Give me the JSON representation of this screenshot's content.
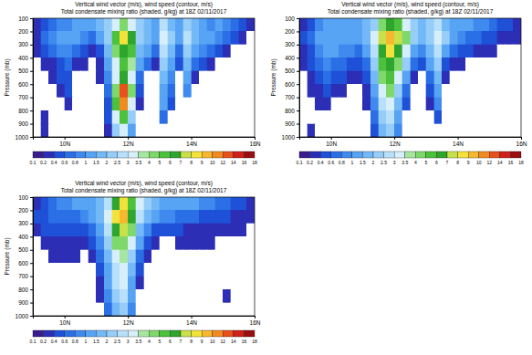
{
  "chart_data": [
    {
      "type": "heatmap",
      "title": "Vertical wind vector (m/s), wind speed (contour, m/s)",
      "subtitle": "Total condensate mixing ratio (shaded, g/kg) at 18Z 02/11/2017",
      "y_label": "Pressure (mb)",
      "xlim": [
        9,
        16
      ],
      "xticks": [
        {
          "value": 10,
          "label": "10N"
        },
        {
          "value": 12,
          "label": "12N"
        },
        {
          "value": 14,
          "label": "14N"
        },
        {
          "value": 16,
          "label": "16N"
        }
      ],
      "ylim": [
        1000,
        100
      ],
      "yticks": [
        100,
        200,
        300,
        400,
        500,
        600,
        700,
        800,
        900,
        1000
      ],
      "x_bins": [
        9,
        9.25,
        9.5,
        9.75,
        10,
        10.25,
        10.5,
        10.75,
        11,
        11.25,
        11.5,
        11.75,
        12,
        12.25,
        12.5,
        12.75,
        13,
        13.25,
        13.5,
        13.75,
        14,
        14.25,
        14.5,
        14.75,
        15,
        15.25,
        15.5,
        15.75,
        16
      ],
      "y_bins": [
        100,
        200,
        300,
        400,
        500,
        600,
        700,
        800,
        900,
        1000
      ],
      "cells": [
        [
          0.3,
          0.5,
          0.6,
          0.8,
          0.8,
          1,
          1.2,
          1,
          1.5,
          2,
          3,
          4,
          3,
          2,
          1.5,
          1.2,
          2.5,
          1.5,
          1.2,
          2,
          1.5,
          1,
          0.8,
          1,
          0.8,
          0.6,
          0.5,
          0.3
        ],
        [
          0.3,
          0.6,
          0.8,
          1,
          1.2,
          1,
          0.8,
          0.6,
          1,
          2,
          5,
          8,
          6,
          2,
          1.5,
          1,
          3,
          2,
          1,
          2.5,
          1.5,
          1,
          1.2,
          0.8,
          0.6,
          0.5,
          0.3,
          0
        ],
        [
          0.2,
          0.4,
          0.6,
          0.8,
          0.8,
          0.6,
          0.5,
          0.3,
          0.5,
          1.5,
          4,
          6,
          5,
          1.5,
          1,
          0.6,
          2.5,
          1.5,
          0.6,
          2,
          1,
          0.8,
          0.6,
          0.4,
          0.3,
          0,
          0,
          0
        ],
        [
          0,
          0.2,
          0.3,
          0.5,
          0.6,
          0.3,
          0.2,
          0,
          0.3,
          1,
          3,
          5,
          3.5,
          1,
          0.6,
          0.3,
          2,
          1,
          0.4,
          1.5,
          0.6,
          0.5,
          0.3,
          0,
          0,
          0,
          0,
          0
        ],
        [
          0,
          0,
          0.2,
          0.4,
          0.5,
          0,
          0,
          0,
          0.2,
          0.8,
          3,
          6,
          3,
          0.6,
          0,
          0,
          1.5,
          0.8,
          0,
          1.2,
          0.3,
          0,
          0,
          0,
          0,
          0,
          0,
          0
        ],
        [
          0,
          0,
          0,
          0.3,
          0.4,
          0,
          0,
          0,
          0,
          0.6,
          4,
          12,
          4,
          0.4,
          0,
          0,
          1.2,
          0.6,
          0,
          0.8,
          0,
          0,
          0,
          0,
          0,
          0,
          0,
          0
        ],
        [
          0,
          0,
          0,
          0,
          0.2,
          0,
          0,
          0,
          0,
          0.5,
          5,
          10,
          3,
          0.3,
          0,
          0,
          1,
          0.4,
          0,
          0,
          0,
          0,
          0,
          0,
          0,
          0,
          0,
          0
        ],
        [
          0,
          0.3,
          0,
          0,
          0,
          0,
          0,
          0,
          0,
          0.4,
          3,
          5,
          2,
          0,
          0,
          0,
          0.6,
          0,
          0,
          0,
          0,
          0,
          0,
          0,
          0,
          0,
          0,
          0
        ],
        [
          0,
          0.2,
          0,
          0,
          0,
          0,
          0,
          0,
          0,
          0.3,
          2,
          3,
          1,
          0,
          0,
          0,
          0,
          0,
          0,
          0,
          0,
          0,
          0,
          0,
          0,
          0,
          0,
          0
        ]
      ],
      "colorbar": {
        "ticks": [
          0.1,
          0.2,
          0.4,
          0.6,
          0.8,
          1,
          1.5,
          2,
          2.5,
          3,
          3.5,
          4,
          5,
          6,
          7,
          8,
          9,
          10,
          12,
          14,
          16,
          18
        ],
        "colors": [
          "#3b1c8c",
          "#2c2fb5",
          "#1f50d8",
          "#2a6fe6",
          "#3f8aef",
          "#57a3f4",
          "#74b9f7",
          "#96cdf9",
          "#b8e0fb",
          "#d6effa",
          "#a6e6a0",
          "#7fd86a",
          "#4cc13c",
          "#2ea52c",
          "#c8e04a",
          "#f2e23a",
          "#f6b82e",
          "#f28a22",
          "#e8501c",
          "#d0201a",
          "#9a0f10"
        ]
      }
    },
    {
      "type": "heatmap",
      "title": "Vertical wind vector (m/s), wind speed (contour, m/s)",
      "subtitle": "Total condensate mixing ratio (shaded, g/kg) at 18Z 02/11/2017",
      "y_label": "Pressure (mb)",
      "xlim": [
        9,
        16
      ],
      "xticks": [
        {
          "value": 10,
          "label": "10N"
        },
        {
          "value": 12,
          "label": "12N"
        },
        {
          "value": 14,
          "label": "14N"
        },
        {
          "value": 16,
          "label": "16N"
        }
      ],
      "ylim": [
        1000,
        100
      ],
      "yticks": [
        100,
        200,
        300,
        400,
        500,
        600,
        700,
        800,
        900,
        1000
      ],
      "x_bins": [
        9,
        9.25,
        9.5,
        9.75,
        10,
        10.25,
        10.5,
        10.75,
        11,
        11.25,
        11.5,
        11.75,
        12,
        12.25,
        12.5,
        12.75,
        13,
        13.25,
        13.5,
        13.75,
        14,
        14.25,
        14.5,
        14.75,
        15,
        15.25,
        15.5,
        15.75,
        16
      ],
      "y_bins": [
        100,
        200,
        300,
        400,
        500,
        600,
        700,
        800,
        900,
        1000
      ],
      "cells": [
        [
          0.3,
          0.5,
          0.8,
          1,
          1,
          1.2,
          1,
          1,
          1.5,
          2,
          4,
          6,
          5,
          3,
          2,
          1.5,
          2,
          2.5,
          1.5,
          1.2,
          1,
          1,
          0.8,
          0.8,
          0.6,
          0.5,
          0.4,
          0.3
        ],
        [
          0.4,
          0.6,
          1,
          1.2,
          1.2,
          1,
          1,
          1,
          1.5,
          3,
          7,
          9,
          7,
          4,
          2,
          1.5,
          2,
          3,
          2,
          1,
          0.8,
          0.6,
          0.6,
          0.5,
          0.4,
          0.3,
          0.2,
          0.2
        ],
        [
          0.3,
          0.5,
          0.8,
          1,
          1,
          0.8,
          0.8,
          0.6,
          1,
          2.5,
          6,
          8,
          6,
          3,
          1,
          0.8,
          1.5,
          2.5,
          1,
          0.6,
          0.4,
          0.4,
          0.3,
          0.2,
          0.2,
          0,
          0,
          0
        ],
        [
          0.2,
          0.4,
          0.6,
          0.8,
          0.6,
          0.6,
          0.5,
          0.4,
          0.6,
          2,
          5,
          6,
          4,
          2,
          0.6,
          0.4,
          1,
          2,
          0.5,
          0.3,
          0.2,
          0,
          0,
          0,
          0,
          0,
          0,
          0
        ],
        [
          0,
          0.3,
          0.5,
          0.6,
          0.5,
          0.4,
          0.3,
          0.2,
          0.4,
          1.5,
          4,
          5,
          3,
          1,
          0.3,
          0,
          0.6,
          1.5,
          0.3,
          0,
          0,
          0,
          0,
          0,
          0,
          0,
          0,
          0
        ],
        [
          0,
          0.2,
          0.3,
          0.4,
          0.3,
          0.2,
          0,
          0,
          0.3,
          1,
          3,
          4,
          2,
          0.6,
          0,
          0,
          0.4,
          1,
          0,
          0,
          0,
          0,
          0,
          0,
          0,
          0,
          0,
          0
        ],
        [
          0,
          0,
          0.2,
          0.2,
          0,
          0,
          0,
          0,
          0.2,
          0.8,
          2.5,
          3,
          1.5,
          0.4,
          0,
          0,
          0.3,
          0.8,
          0,
          0,
          0,
          0,
          0,
          0,
          0,
          0,
          0,
          0
        ],
        [
          0,
          0,
          0,
          0,
          0,
          0,
          0,
          0,
          0,
          0.6,
          2,
          2.5,
          1,
          0,
          0,
          0,
          0,
          0.4,
          0,
          0,
          0,
          0,
          0,
          0,
          0,
          0,
          0,
          0
        ],
        [
          0,
          0.3,
          0,
          0,
          0,
          0,
          0,
          0,
          0,
          0.4,
          1.5,
          2,
          0.8,
          0,
          0,
          0,
          0,
          0,
          0,
          0,
          0,
          0,
          0,
          0,
          0,
          0,
          0,
          0
        ]
      ],
      "colorbar": {
        "ticks": [
          0.1,
          0.2,
          0.4,
          0.6,
          0.8,
          1,
          1.5,
          2,
          2.5,
          3,
          3.5,
          4,
          5,
          6,
          7,
          8,
          9,
          10,
          12,
          14,
          16,
          18
        ],
        "colors": [
          "#3b1c8c",
          "#2c2fb5",
          "#1f50d8",
          "#2a6fe6",
          "#3f8aef",
          "#57a3f4",
          "#74b9f7",
          "#96cdf9",
          "#b8e0fb",
          "#d6effa",
          "#a6e6a0",
          "#7fd86a",
          "#4cc13c",
          "#2ea52c",
          "#c8e04a",
          "#f2e23a",
          "#f6b82e",
          "#f28a22",
          "#e8501c",
          "#d0201a",
          "#9a0f10"
        ]
      }
    },
    {
      "type": "heatmap",
      "title": "Vertical wind vector (m/s), wind speed (contour, m/s)",
      "subtitle": "Total condensate mixing ratio (shaded, g/kg) at 18Z 02/11/2017",
      "y_label": "Pressure (mb)",
      "xlim": [
        9,
        16
      ],
      "xticks": [
        {
          "value": 10,
          "label": "10N"
        },
        {
          "value": 12,
          "label": "12N"
        },
        {
          "value": 14,
          "label": "14N"
        },
        {
          "value": 16,
          "label": "16N"
        }
      ],
      "ylim": [
        1000,
        100
      ],
      "yticks": [
        100,
        200,
        300,
        400,
        500,
        600,
        700,
        800,
        900,
        1000
      ],
      "x_bins": [
        9,
        9.25,
        9.5,
        9.75,
        10,
        10.25,
        10.5,
        10.75,
        11,
        11.25,
        11.5,
        11.75,
        12,
        12.25,
        12.5,
        12.75,
        13,
        13.25,
        13.5,
        13.75,
        14,
        14.25,
        14.5,
        14.75,
        15,
        15.25,
        15.5,
        15.75,
        16
      ],
      "y_bins": [
        100,
        200,
        300,
        400,
        500,
        600,
        700,
        800,
        900,
        1000
      ],
      "cells": [
        [
          0.3,
          0.5,
          0.6,
          0.8,
          0.8,
          1,
          1,
          1.2,
          1.5,
          2.5,
          6,
          8,
          5,
          3,
          2,
          1.5,
          1.2,
          1,
          1,
          1,
          1,
          0.8,
          0.8,
          0.6,
          0.6,
          0.5,
          0.4,
          0.3
        ],
        [
          0.4,
          0.5,
          0.6,
          0.6,
          0.6,
          0.6,
          0.8,
          1,
          1.5,
          3,
          8,
          9,
          6,
          2.5,
          1.5,
          1,
          0.8,
          0.8,
          0.6,
          0.6,
          0.6,
          0.5,
          0.5,
          0.4,
          0.4,
          0.3,
          0.3,
          0.2
        ],
        [
          0.3,
          0.4,
          0.4,
          0.4,
          0.4,
          0.4,
          0.5,
          0.6,
          1,
          2.5,
          6,
          7,
          4,
          1.5,
          0.8,
          0.5,
          0.4,
          0.4,
          0.4,
          0.3,
          0.3,
          0.3,
          0.3,
          0.2,
          0.2,
          0.2,
          0.2,
          0
        ],
        [
          0,
          0.2,
          0.3,
          0.3,
          0.3,
          0.3,
          0.3,
          0.4,
          0.8,
          2,
          4,
          4.5,
          3,
          1,
          0.4,
          0.2,
          0,
          0,
          0.2,
          0.2,
          0.2,
          0.2,
          0.2,
          0,
          0,
          0,
          0,
          0
        ],
        [
          0,
          0,
          0.2,
          0.2,
          0.2,
          0.2,
          0,
          0.2,
          0.6,
          1.5,
          3,
          3.5,
          2,
          0.6,
          0.2,
          0,
          0,
          0,
          0,
          0,
          0,
          0,
          0,
          0,
          0,
          0,
          0,
          0
        ],
        [
          0,
          0,
          0,
          0,
          0,
          0,
          0,
          0,
          0.4,
          1.2,
          2.5,
          3,
          1.5,
          0.4,
          0,
          0,
          0,
          0,
          0,
          0,
          0,
          0,
          0,
          0,
          0,
          0,
          0,
          0
        ],
        [
          0,
          0,
          0,
          0,
          0,
          0,
          0,
          0,
          0.3,
          1,
          2.5,
          3,
          1.2,
          0.3,
          0,
          0,
          0,
          0,
          0,
          0,
          0,
          0,
          0,
          0,
          0,
          0,
          0,
          0
        ],
        [
          0,
          0,
          0,
          0,
          0,
          0,
          0,
          0,
          0.2,
          0.8,
          2,
          2.5,
          1,
          0,
          0,
          0,
          0,
          0,
          0,
          0,
          0,
          0,
          0,
          0,
          0.3,
          0,
          0,
          0
        ],
        [
          0,
          0,
          0,
          0,
          0,
          0,
          0,
          0,
          0,
          0.6,
          1.5,
          2,
          0.8,
          0,
          0,
          0,
          0,
          0,
          0,
          0,
          0,
          0,
          0,
          0,
          0,
          0,
          0,
          0
        ]
      ],
      "colorbar": {
        "ticks": [
          0.1,
          0.2,
          0.4,
          0.6,
          0.8,
          1,
          1.5,
          2,
          2.5,
          3,
          3.5,
          4,
          5,
          6,
          7,
          8,
          9,
          10,
          12,
          14,
          16,
          18
        ],
        "colors": [
          "#3b1c8c",
          "#2c2fb5",
          "#1f50d8",
          "#2a6fe6",
          "#3f8aef",
          "#57a3f4",
          "#74b9f7",
          "#96cdf9",
          "#b8e0fb",
          "#d6effa",
          "#a6e6a0",
          "#7fd86a",
          "#4cc13c",
          "#2ea52c",
          "#c8e04a",
          "#f2e23a",
          "#f6b82e",
          "#f28a22",
          "#e8501c",
          "#d0201a",
          "#9a0f10"
        ]
      }
    }
  ]
}
